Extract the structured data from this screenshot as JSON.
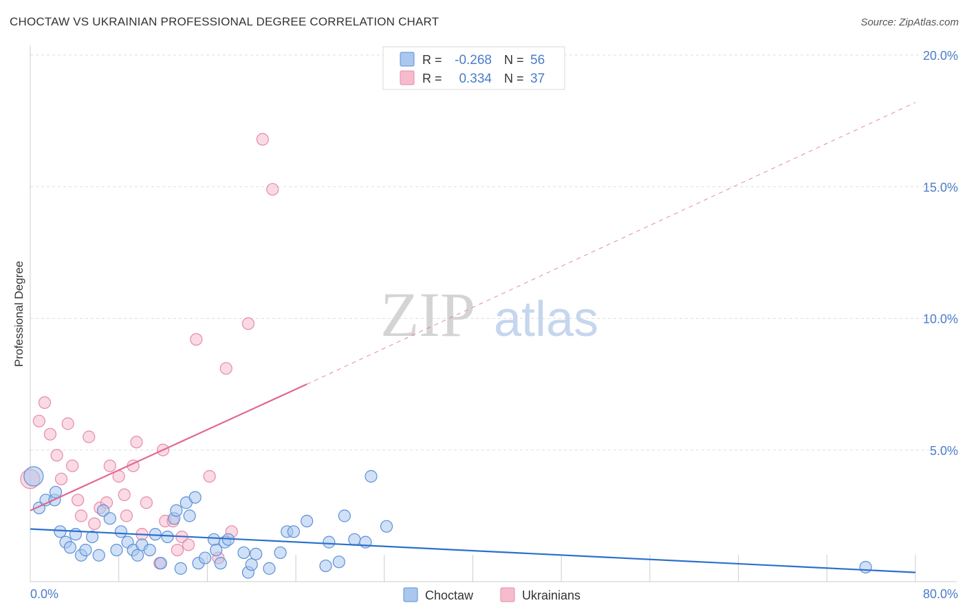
{
  "chart_data": {
    "type": "scatter",
    "title": "CHOCTAW VS UKRAINIAN PROFESSIONAL DEGREE CORRELATION CHART",
    "source": "Source: ZipAtlas.com",
    "xlabel": "",
    "ylabel": "Professional Degree",
    "xlim": [
      0,
      80
    ],
    "ylim": [
      0,
      20
    ],
    "x_tick_labels": [
      "0.0%",
      "80.0%"
    ],
    "y_ticks": [
      5,
      10,
      15,
      20
    ],
    "y_tick_labels": [
      "5.0%",
      "10.0%",
      "15.0%",
      "20.0%"
    ],
    "grid": true,
    "watermark": "ZIPatlas",
    "legend": {
      "placement": "top-center",
      "rows": [
        {
          "r_label": "R =",
          "r_value": "-0.268",
          "n_label": "N =",
          "n_value": "56"
        },
        {
          "r_label": "R =",
          "r_value": "0.334",
          "n_label": "N =",
          "n_value": "37"
        }
      ]
    },
    "bottom_legend": [
      "Choctaw",
      "Ukrainians"
    ],
    "colors": {
      "choctaw_fill": "#a9c7ef",
      "choctaw_stroke": "#5b8fd6",
      "choctaw_line": "#2a6fcc",
      "ukr_fill": "#f6bccd",
      "ukr_stroke": "#e58aa7",
      "ukr_line": "#e0678f",
      "tick_text": "#4a7cc9"
    },
    "series": [
      {
        "name": "Choctaw",
        "trend": {
          "x0": 0,
          "y0": 2.0,
          "x1": 80,
          "y1": 0.35
        },
        "points": [
          [
            0.3,
            4.0
          ],
          [
            0.8,
            2.8
          ],
          [
            1.4,
            3.1
          ],
          [
            2.2,
            3.1
          ],
          [
            2.3,
            3.4
          ],
          [
            2.7,
            1.9
          ],
          [
            3.2,
            1.5
          ],
          [
            3.6,
            1.3
          ],
          [
            4.1,
            1.8
          ],
          [
            4.6,
            1.0
          ],
          [
            5.0,
            1.2
          ],
          [
            5.6,
            1.7
          ],
          [
            6.2,
            1.0
          ],
          [
            6.6,
            2.7
          ],
          [
            7.2,
            2.4
          ],
          [
            7.8,
            1.2
          ],
          [
            8.2,
            1.9
          ],
          [
            8.8,
            1.5
          ],
          [
            9.3,
            1.2
          ],
          [
            9.7,
            1.0
          ],
          [
            10.1,
            1.4
          ],
          [
            10.8,
            1.2
          ],
          [
            11.3,
            1.8
          ],
          [
            11.8,
            0.7
          ],
          [
            12.4,
            1.7
          ],
          [
            13.0,
            2.4
          ],
          [
            13.2,
            2.7
          ],
          [
            13.6,
            0.5
          ],
          [
            14.1,
            3.0
          ],
          [
            14.4,
            2.5
          ],
          [
            14.9,
            3.2
          ],
          [
            15.2,
            0.7
          ],
          [
            15.8,
            0.9
          ],
          [
            16.6,
            1.6
          ],
          [
            16.8,
            1.2
          ],
          [
            17.2,
            0.7
          ],
          [
            17.6,
            1.5
          ],
          [
            17.9,
            1.6
          ],
          [
            19.3,
            1.1
          ],
          [
            19.7,
            0.35
          ],
          [
            20.0,
            0.65
          ],
          [
            20.4,
            1.05
          ],
          [
            21.6,
            0.5
          ],
          [
            22.6,
            1.1
          ],
          [
            23.2,
            1.9
          ],
          [
            23.8,
            1.9
          ],
          [
            25.0,
            2.3
          ],
          [
            26.7,
            0.6
          ],
          [
            27.0,
            1.5
          ],
          [
            27.9,
            0.75
          ],
          [
            28.4,
            2.5
          ],
          [
            29.3,
            1.6
          ],
          [
            30.3,
            1.5
          ],
          [
            30.8,
            4.0
          ],
          [
            32.2,
            2.1
          ],
          [
            75.5,
            0.55
          ]
        ]
      },
      {
        "name": "Ukrainians",
        "trend": {
          "x0": 0,
          "y0": 2.7,
          "x1": 25,
          "y1": 7.5,
          "dashed_to_x": 80,
          "dashed_to_y": 18.2
        },
        "points": [
          [
            0.0,
            3.9
          ],
          [
            0.8,
            6.1
          ],
          [
            1.3,
            6.8
          ],
          [
            1.8,
            5.6
          ],
          [
            2.4,
            4.8
          ],
          [
            2.8,
            3.9
          ],
          [
            3.4,
            6.0
          ],
          [
            3.8,
            4.4
          ],
          [
            4.3,
            3.1
          ],
          [
            4.6,
            2.5
          ],
          [
            5.3,
            5.5
          ],
          [
            5.8,
            2.2
          ],
          [
            6.3,
            2.8
          ],
          [
            6.9,
            3.0
          ],
          [
            7.2,
            4.4
          ],
          [
            8.0,
            4.0
          ],
          [
            8.5,
            3.3
          ],
          [
            8.7,
            2.5
          ],
          [
            9.3,
            4.4
          ],
          [
            9.6,
            5.3
          ],
          [
            10.1,
            1.8
          ],
          [
            10.5,
            3.0
          ],
          [
            11.7,
            0.7
          ],
          [
            12.0,
            5.0
          ],
          [
            12.2,
            2.3
          ],
          [
            12.9,
            2.3
          ],
          [
            13.3,
            1.2
          ],
          [
            13.7,
            1.7
          ],
          [
            14.3,
            1.4
          ],
          [
            15.0,
            9.2
          ],
          [
            16.2,
            4.0
          ],
          [
            17.0,
            0.9
          ],
          [
            17.7,
            8.1
          ],
          [
            18.2,
            1.9
          ],
          [
            19.7,
            9.8
          ],
          [
            21.0,
            16.8
          ],
          [
            21.9,
            14.9
          ]
        ]
      }
    ]
  }
}
